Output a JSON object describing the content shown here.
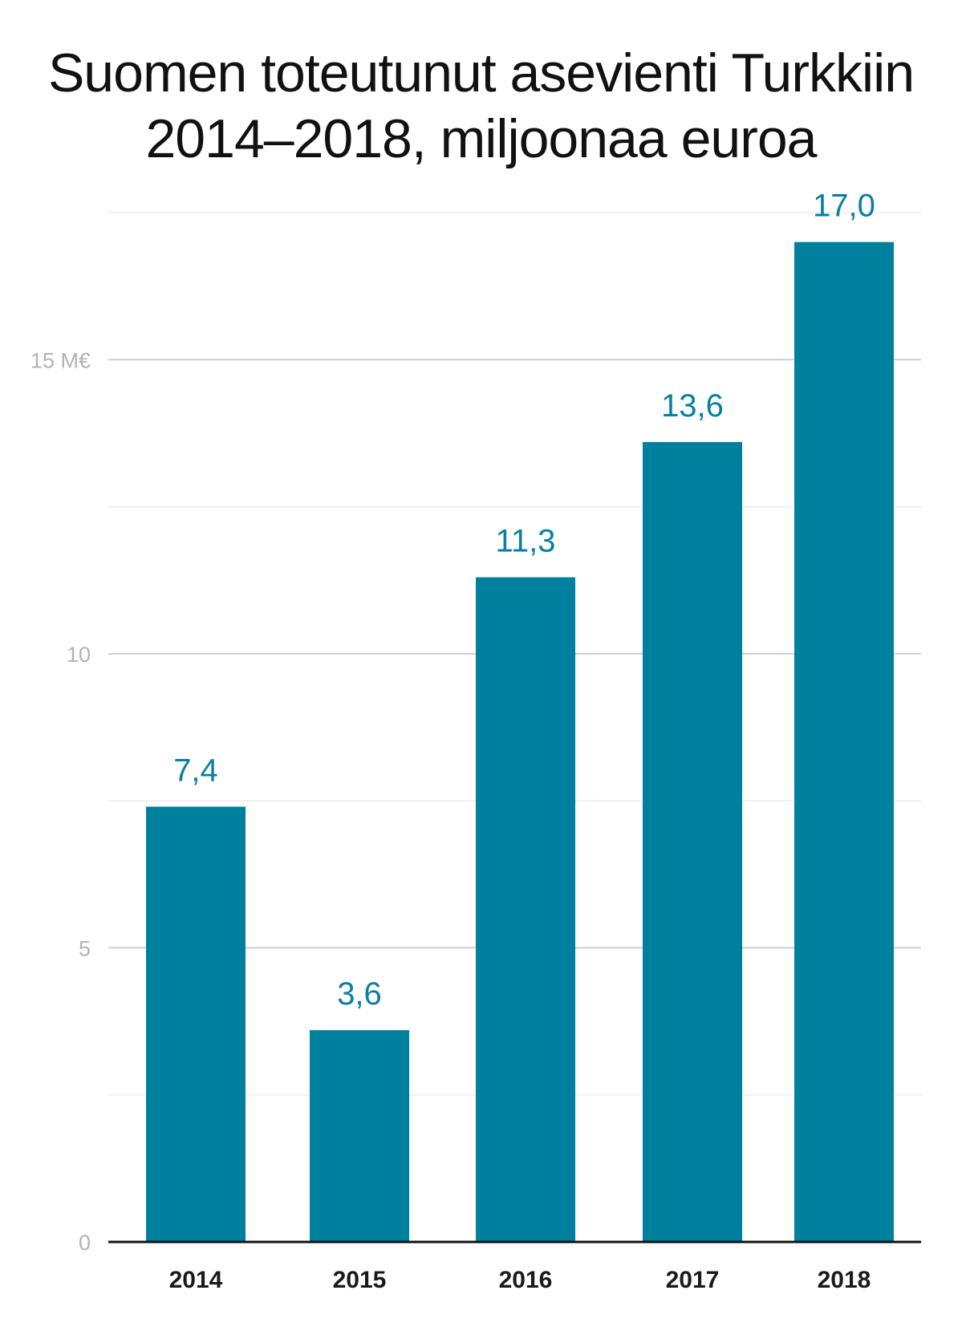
{
  "chart_data": {
    "type": "bar",
    "title_lines": [
      "Suomen toteutunut asevienti Turkkiin",
      "2014–2018, miljoonaa euroa"
    ],
    "categories": [
      "2014",
      "2015",
      "2016",
      "2017",
      "2018"
    ],
    "values": [
      7.4,
      3.6,
      11.3,
      13.6,
      17.0
    ],
    "value_labels": [
      "7,4",
      "3,6",
      "11,3",
      "13,6",
      "17,0"
    ],
    "ylim": [
      0,
      17.5
    ],
    "yticks": [
      {
        "value": 0,
        "label": "0"
      },
      {
        "value": 5,
        "label": "5"
      },
      {
        "value": 10,
        "label": "10"
      },
      {
        "value": 15,
        "label": "15 M€"
      }
    ],
    "minor_gridlines": [
      2.5,
      7.5,
      12.5,
      17.5
    ],
    "xlabel": "",
    "ylabel": "",
    "grid": true,
    "colors": {
      "bar": "#00809f",
      "value_label": "#0a7fa0",
      "grid_major": "#cfcfcf",
      "grid_minor": "#ececec",
      "axis": "#111111",
      "tick_label": "#b3b3b3"
    }
  }
}
